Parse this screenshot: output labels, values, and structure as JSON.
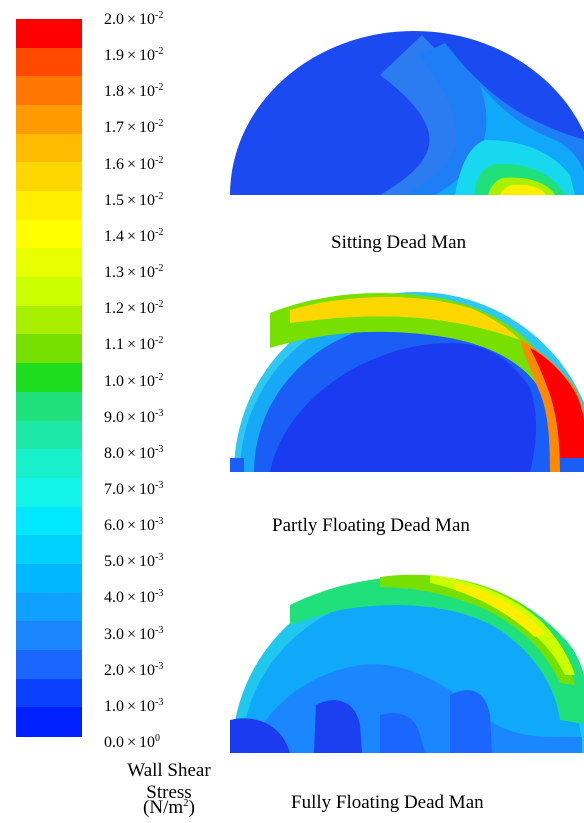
{
  "colorbar": {
    "title": "Wall Shear Stress",
    "unit_base": "(N/m",
    "unit_exp": "2",
    "unit_close": ")",
    "colors": [
      "#ff0000",
      "#ff4a00",
      "#ff7600",
      "#ff9a00",
      "#ffbb00",
      "#ffd700",
      "#ffee00",
      "#ffff00",
      "#e8ff00",
      "#cbff00",
      "#a8f000",
      "#78e000",
      "#1edc1e",
      "#1fe07a",
      "#1ee8a8",
      "#18f0cc",
      "#12f5e8",
      "#00e8ff",
      "#00d2ff",
      "#00b8ff",
      "#10a0ff",
      "#1a86ff",
      "#1a66ff",
      "#0a40ff",
      "#0020ff"
    ],
    "ticks": [
      {
        "mant": "2.0",
        "times": "×",
        "base": "10",
        "exp": "-2"
      },
      {
        "mant": "1.9",
        "times": "×",
        "base": "10",
        "exp": "-2"
      },
      {
        "mant": "1.8",
        "times": "×",
        "base": "10",
        "exp": "-2"
      },
      {
        "mant": "1.7",
        "times": "×",
        "base": "10",
        "exp": "-2"
      },
      {
        "mant": "1.6",
        "times": "×",
        "base": "10",
        "exp": "-2"
      },
      {
        "mant": "1.5",
        "times": "×",
        "base": "10",
        "exp": "-2"
      },
      {
        "mant": "1.4",
        "times": "×",
        "base": "10",
        "exp": "-2"
      },
      {
        "mant": "1.3",
        "times": "×",
        "base": "10",
        "exp": "-2"
      },
      {
        "mant": "1.2",
        "times": "×",
        "base": "10",
        "exp": "-2"
      },
      {
        "mant": "1.1",
        "times": "×",
        "base": "10",
        "exp": "-2"
      },
      {
        "mant": "1.0",
        "times": "×",
        "base": "10",
        "exp": "-2"
      },
      {
        "mant": "9.0",
        "times": "×",
        "base": "10",
        "exp": "-3"
      },
      {
        "mant": "8.0",
        "times": "×",
        "base": "10",
        "exp": "-3"
      },
      {
        "mant": "7.0",
        "times": "×",
        "base": "10",
        "exp": "-3"
      },
      {
        "mant": "6.0",
        "times": "×",
        "base": "10",
        "exp": "-3"
      },
      {
        "mant": "5.0",
        "times": "×",
        "base": "10",
        "exp": "-3"
      },
      {
        "mant": "4.0",
        "times": "×",
        "base": "10",
        "exp": "-3"
      },
      {
        "mant": "3.0",
        "times": "×",
        "base": "10",
        "exp": "-3"
      },
      {
        "mant": "2.0",
        "times": "×",
        "base": "10",
        "exp": "-3"
      },
      {
        "mant": "1.0",
        "times": "×",
        "base": "10",
        "exp": "-3"
      },
      {
        "mant": "0.0",
        "times": "×",
        "base": "10",
        "exp": "0"
      }
    ]
  },
  "panels": [
    {
      "caption": "Sitting Dead Man"
    },
    {
      "caption": "Partly Floating Dead Man"
    },
    {
      "caption": "Fully Floating Dead Man"
    }
  ]
}
